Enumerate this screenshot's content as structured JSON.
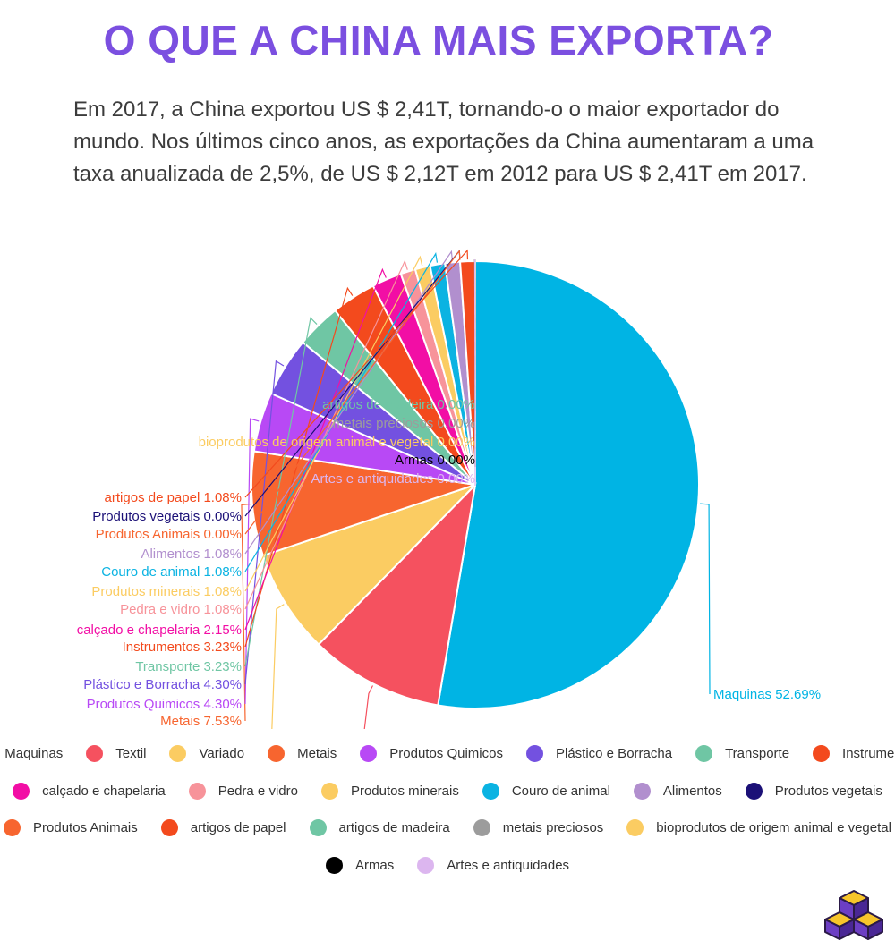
{
  "title": "O QUE A CHINA MAIS EXPORTA?",
  "subtitle": "Em 2017, a China exportou US $ 2,41T, tornando-o o maior exportador do mundo. Nos últimos cinco anos, as exportações da China aumentaram a uma taxa anualizada de 2,5%, de US $ 2,12T em 2012 para US $ 2,41T em 2017.",
  "chart_data": {
    "type": "pie",
    "title": "",
    "unit": "%",
    "slices": [
      {
        "label": "Maquinas",
        "value": 52.69,
        "display": "Maquinas 52.69%",
        "color": "#00b4e4"
      },
      {
        "label": "Textil",
        "value": 9.68,
        "display": "Textil 9.68%",
        "color": "#f5515f"
      },
      {
        "label": "Variado",
        "value": 7.53,
        "display": "Variado 7.53%",
        "color": "#fbcc62"
      },
      {
        "label": "Metais",
        "value": 7.53,
        "display": "Metais 7.53%",
        "color": "#f7652f"
      },
      {
        "label": "Produtos Quimicos",
        "value": 4.3,
        "display": "Produtos Quimicos 4.30%",
        "color": "#b849f5"
      },
      {
        "label": "Plástico e Borracha",
        "value": 4.3,
        "display": "Plástico e Borracha 4.30%",
        "color": "#7351e0"
      },
      {
        "label": "Transporte",
        "value": 3.23,
        "display": "Transporte 3.23%",
        "color": "#6fc6a4"
      },
      {
        "label": "Instrumentos",
        "value": 3.23,
        "display": "Instrumentos 3.23%",
        "color": "#f34a1d"
      },
      {
        "label": "calçado e chapelaria",
        "value": 2.15,
        "display": "calçado e chapelaria 2.15%",
        "color": "#f20ea5"
      },
      {
        "label": "Pedra e vidro",
        "value": 1.08,
        "display": "Pedra e vidro 1.08%",
        "color": "#f7939a"
      },
      {
        "label": "Produtos minerais",
        "value": 1.08,
        "display": "Produtos minerais 1.08%",
        "color": "#fbcc62"
      },
      {
        "label": "Couro de animal",
        "value": 1.08,
        "display": "Couro de animal 1.08%",
        "color": "#0bb3e2"
      },
      {
        "label": "Alimentos",
        "value": 1.08,
        "display": "Alimentos 1.08%",
        "color": "#b18fce"
      },
      {
        "label": "Produtos vegetais",
        "value": 0.0,
        "display": "Produtos vegetais 0.00%",
        "color": "#1b1077"
      },
      {
        "label": "Produtos Animais",
        "value": 0.0,
        "display": "Produtos Animais 0.00%",
        "color": "#f7652f"
      },
      {
        "label": "artigos de papel",
        "value": 1.08,
        "display": "artigos de papel 1.08%",
        "color": "#f34a1d"
      },
      {
        "label": "artigos de madeira",
        "value": 0.0,
        "display": "artigos de madeira 0.00%",
        "color": "#6fc6a4"
      },
      {
        "label": "metais preciosos",
        "value": 0.0,
        "display": "metais preciosos 0.00%",
        "color": "#9c9c9c"
      },
      {
        "label": "bioprodutos de origem animal e vegetal",
        "value": 0.0,
        "display": "bioprodutos de origem animal e vegetal 0.00%",
        "color": "#fbcc62"
      },
      {
        "label": "Armas",
        "value": 0.0,
        "display": "Armas 0.00%",
        "color": "#000000"
      },
      {
        "label": "Artes e antiquidades",
        "value": 0.0,
        "display": "Artes e antiquidades 0.00%",
        "color": "#dcb6ef"
      }
    ],
    "legend_position": "bottom"
  }
}
